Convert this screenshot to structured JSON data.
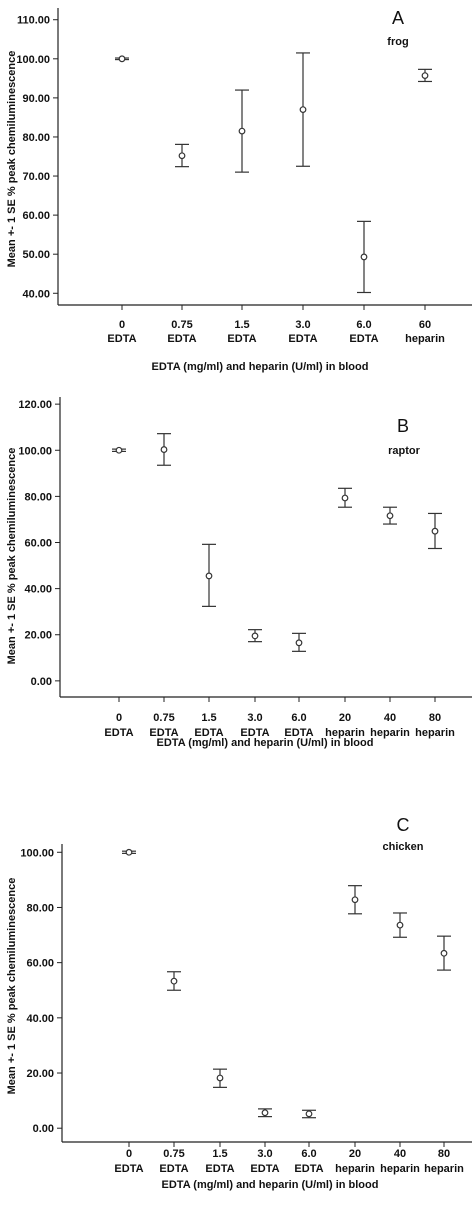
{
  "chart_data": [
    {
      "type": "errorbar",
      "panel_letter": "A",
      "series_label": "frog",
      "categories": [
        {
          "line1": "0",
          "line2": "EDTA"
        },
        {
          "line1": "0.75",
          "line2": "EDTA"
        },
        {
          "line1": "1.5",
          "line2": "EDTA"
        },
        {
          "line1": "3.0",
          "line2": "EDTA"
        },
        {
          "line1": "6.0",
          "line2": "EDTA"
        },
        {
          "line1": "60",
          "line2": "heparin"
        }
      ],
      "means": [
        100,
        75.2,
        81.5,
        87,
        49.3,
        95.7
      ],
      "lower": [
        99.8,
        72.4,
        71,
        72.5,
        40.2,
        94.2
      ],
      "upper": [
        100.2,
        78.1,
        92,
        101.5,
        58.4,
        97.3
      ],
      "yticks": [
        "40.00",
        "50.00",
        "60.00",
        "70.00",
        "80.00",
        "90.00",
        "100.00",
        "110.00"
      ],
      "ylim": [
        37,
        113
      ],
      "ylabel": "Mean +- 1 SE % peak chemiluminescence",
      "xlabel": "EDTA (mg/ml) and heparin (U/ml) in blood"
    },
    {
      "type": "errorbar",
      "panel_letter": "B",
      "series_label": "raptor",
      "categories": [
        {
          "line1": "0",
          "line2": "EDTA"
        },
        {
          "line1": "0.75",
          "line2": "EDTA"
        },
        {
          "line1": "1.5",
          "line2": "EDTA"
        },
        {
          "line1": "3.0",
          "line2": "EDTA"
        },
        {
          "line1": "6.0",
          "line2": "EDTA"
        },
        {
          "line1": "20",
          "line2": "heparin"
        },
        {
          "line1": "40",
          "line2": "heparin"
        },
        {
          "line1": "80",
          "line2": "heparin"
        }
      ],
      "means": [
        100,
        100.3,
        45.5,
        19.5,
        16.5,
        79.3,
        71.6,
        64.9
      ],
      "lower": [
        99.5,
        93.5,
        32.3,
        17,
        12.8,
        75.3,
        68,
        57.4
      ],
      "upper": [
        100.5,
        107.2,
        59.2,
        22.2,
        20.6,
        83.5,
        75.3,
        72.6
      ],
      "yticks": [
        "0.00",
        "20.00",
        "40.00",
        "60.00",
        "80.00",
        "100.00",
        "120.00"
      ],
      "ylim": [
        -7,
        127
      ],
      "ylabel": "Mean +- 1 SE % peak chemiluminescence",
      "xlabel": "EDTA (mg/ml) and heparin (U/ml) in blood"
    },
    {
      "type": "errorbar",
      "panel_letter": "C",
      "series_label": "chicken",
      "categories": [
        {
          "line1": "0",
          "line2": "EDTA"
        },
        {
          "line1": "0.75",
          "line2": "EDTA"
        },
        {
          "line1": "1.5",
          "line2": "EDTA"
        },
        {
          "line1": "3.0",
          "line2": "EDTA"
        },
        {
          "line1": "6.0",
          "line2": "EDTA"
        },
        {
          "line1": "20",
          "line2": "heparin"
        },
        {
          "line1": "40",
          "line2": "heparin"
        },
        {
          "line1": "80",
          "line2": "heparin"
        }
      ],
      "means": [
        100,
        53.3,
        18.2,
        5.6,
        5.2,
        82.8,
        73.6,
        63.4
      ],
      "lower": [
        99.6,
        50,
        14.8,
        4.2,
        3.8,
        77.7,
        69.2,
        57.3
      ],
      "upper": [
        100.4,
        56.7,
        21.4,
        7,
        6.5,
        87.9,
        78,
        69.6
      ],
      "yticks": [
        "0.00",
        "20.00",
        "40.00",
        "60.00",
        "80.00",
        "100.00"
      ],
      "ylim": [
        -5,
        103
      ],
      "ylabel": "Mean +- 1 SE % peak chemiluminescence",
      "xlabel": "EDTA (mg/ml) and heparin (U/ml) in blood"
    }
  ]
}
